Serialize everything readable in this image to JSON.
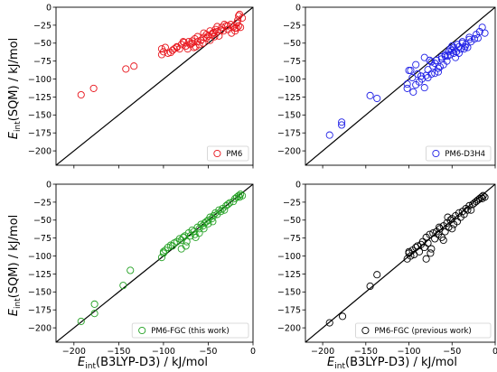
{
  "figure": {
    "xlabel": {
      "main": "E",
      "sub": "int",
      "rest": "(B3LYP-D3) / kJ/mol"
    },
    "ylabel": {
      "main": "E",
      "sub": "int",
      "rest": "(SQM) / kJ/mol"
    }
  },
  "chart_data": [
    {
      "type": "scatter",
      "panel": "top-left",
      "xlim": [
        -220,
        0
      ],
      "ylim": [
        -220,
        0
      ],
      "xticks": [
        -200,
        -150,
        -100,
        -50,
        0
      ],
      "yticks": [
        0,
        -25,
        -50,
        -75,
        -100,
        -125,
        -150,
        -175,
        -200
      ],
      "show_xtick_labels": false,
      "show_ytick_labels": true,
      "diagonal": true,
      "grid": false,
      "legend_position": "bottom-right",
      "series": [
        {
          "name": "PM6",
          "color": "#e8141b",
          "marker": "open-circle",
          "x": [
            -192,
            -178,
            -142,
            -133,
            -102,
            -98,
            -100,
            -92,
            -88,
            -85,
            -80,
            -77,
            -75,
            -73,
            -70,
            -68,
            -66,
            -64,
            -62,
            -60,
            -58,
            -56,
            -55,
            -52,
            -50,
            -48,
            -46,
            -45,
            -43,
            -40,
            -38,
            -35,
            -33,
            -30,
            -28,
            -25,
            -22,
            -20,
            -18,
            -17,
            -16,
            -15,
            -102,
            -95,
            -90,
            -85,
            -82,
            -78,
            -72,
            -68,
            -65,
            -62,
            -58,
            -55,
            -52,
            -48,
            -44,
            -42,
            -40,
            -36,
            -32,
            -28,
            -24,
            -20,
            -18,
            -16,
            -14,
            -12
          ],
          "y": [
            -122,
            -113,
            -86,
            -82,
            -58,
            -56,
            -62,
            -63,
            -58,
            -56,
            -52,
            -49,
            -54,
            -58,
            -52,
            -50,
            -56,
            -55,
            -48,
            -52,
            -46,
            -50,
            -42,
            -43,
            -40,
            -46,
            -38,
            -36,
            -41,
            -34,
            -40,
            -28,
            -33,
            -26,
            -31,
            -24,
            -27,
            -29,
            -22,
            -18,
            -12,
            -10,
            -66,
            -64,
            -60,
            -55,
            -58,
            -48,
            -48,
            -47,
            -44,
            -41,
            -46,
            -36,
            -38,
            -33,
            -35,
            -31,
            -27,
            -32,
            -24,
            -26,
            -36,
            -33,
            -29,
            -26,
            -28,
            -15
          ]
        }
      ]
    },
    {
      "type": "scatter",
      "panel": "top-right",
      "xlim": [
        -220,
        0
      ],
      "ylim": [
        -220,
        0
      ],
      "xticks": [
        -200,
        -150,
        -100,
        -50,
        0
      ],
      "yticks": [
        0,
        -25,
        -50,
        -75,
        -100,
        -125,
        -150,
        -175,
        -200
      ],
      "show_xtick_labels": false,
      "show_ytick_labels": true,
      "diagonal": true,
      "grid": false,
      "legend_position": "bottom-right",
      "series": [
        {
          "name": "PM6-D3H4",
          "color": "#1f1fe6",
          "marker": "open-circle",
          "x": [
            -192,
            -178,
            -178,
            -145,
            -137,
            -102,
            -102,
            -98,
            -95,
            -92,
            -90,
            -88,
            -85,
            -82,
            -80,
            -78,
            -76,
            -74,
            -72,
            -70,
            -68,
            -66,
            -64,
            -62,
            -60,
            -58,
            -56,
            -54,
            -52,
            -50,
            -50,
            -48,
            -46,
            -44,
            -42,
            -40,
            -38,
            -36,
            -34,
            -32,
            -30,
            -28,
            -24,
            -22,
            -20,
            -18,
            -15,
            -12,
            -100,
            -96,
            -92,
            -86,
            -82,
            -78,
            -74,
            -70,
            -66,
            -62,
            -58,
            -55,
            -52,
            -48,
            -45,
            -42,
            -38,
            -35,
            -30
          ],
          "y": [
            -178,
            -160,
            -164,
            -123,
            -127,
            -113,
            -107,
            -88,
            -118,
            -108,
            -93,
            -104,
            -100,
            -112,
            -95,
            -87,
            -74,
            -93,
            -82,
            -92,
            -74,
            -90,
            -83,
            -69,
            -80,
            -66,
            -75,
            -62,
            -66,
            -60,
            -54,
            -56,
            -70,
            -52,
            -64,
            -58,
            -48,
            -58,
            -52,
            -56,
            -45,
            -48,
            -44,
            -38,
            -43,
            -34,
            -28,
            -36,
            -88,
            -98,
            -80,
            -96,
            -70,
            -98,
            -76,
            -78,
            -85,
            -72,
            -68,
            -68,
            -58,
            -64,
            -62,
            -55,
            -50,
            -55,
            -42
          ]
        }
      ]
    },
    {
      "type": "scatter",
      "panel": "bottom-left",
      "xlim": [
        -220,
        0
      ],
      "ylim": [
        -220,
        0
      ],
      "xticks": [
        -200,
        -150,
        -100,
        -50,
        0
      ],
      "yticks": [
        0,
        -25,
        -50,
        -75,
        -100,
        -125,
        -150,
        -175,
        -200
      ],
      "show_xtick_labels": true,
      "show_ytick_labels": true,
      "diagonal": true,
      "grid": false,
      "legend_position": "bottom-right",
      "series": [
        {
          "name": "PM6-FGC (this work)",
          "color": "#22a022",
          "marker": "open-circle",
          "x": [
            -192,
            -177,
            -177,
            -145,
            -137,
            -102,
            -100,
            -100,
            -98,
            -95,
            -92,
            -90,
            -88,
            -85,
            -82,
            -80,
            -78,
            -76,
            -74,
            -72,
            -70,
            -68,
            -66,
            -64,
            -62,
            -60,
            -58,
            -56,
            -54,
            -52,
            -50,
            -48,
            -46,
            -44,
            -42,
            -40,
            -38,
            -36,
            -34,
            -32,
            -30,
            -28,
            -26,
            -22,
            -20,
            -18,
            -16,
            -15,
            -14,
            -12,
            -80,
            -75,
            -65,
            -60,
            -55,
            -50,
            -45
          ],
          "y": [
            -191,
            -180,
            -167,
            -141,
            -120,
            -102,
            -96,
            -94,
            -92,
            -88,
            -85,
            -86,
            -82,
            -80,
            -76,
            -78,
            -74,
            -72,
            -80,
            -68,
            -72,
            -64,
            -66,
            -74,
            -60,
            -62,
            -56,
            -58,
            -54,
            -52,
            -50,
            -46,
            -48,
            -44,
            -40,
            -42,
            -36,
            -38,
            -34,
            -36,
            -30,
            -28,
            -26,
            -24,
            -20,
            -18,
            -16,
            -18,
            -14,
            -16,
            -90,
            -86,
            -70,
            -68,
            -62,
            -55,
            -52
          ]
        }
      ]
    },
    {
      "type": "scatter",
      "panel": "bottom-right",
      "xlim": [
        -220,
        0
      ],
      "ylim": [
        -220,
        0
      ],
      "xticks": [
        -200,
        -150,
        -100,
        -50,
        0
      ],
      "yticks": [
        0,
        -25,
        -50,
        -75,
        -100,
        -125,
        -150,
        -175,
        -200
      ],
      "show_xtick_labels": true,
      "show_ytick_labels": true,
      "diagonal": true,
      "grid": false,
      "legend_position": "bottom-right",
      "series": [
        {
          "name": "PM6-FGC (previous work)",
          "color": "#000000",
          "marker": "open-circle",
          "x": [
            -192,
            -177,
            -145,
            -137,
            -102,
            -100,
            -100,
            -98,
            -96,
            -94,
            -92,
            -90,
            -88,
            -86,
            -84,
            -82,
            -80,
            -78,
            -76,
            -74,
            -72,
            -70,
            -68,
            -66,
            -64,
            -62,
            -60,
            -58,
            -56,
            -54,
            -52,
            -50,
            -48,
            -46,
            -44,
            -42,
            -40,
            -38,
            -36,
            -34,
            -32,
            -30,
            -28,
            -26,
            -24,
            -22,
            -20,
            -18,
            -16,
            -15,
            -14,
            -12,
            -80,
            -75,
            -65,
            -60,
            -55,
            -50
          ],
          "y": [
            -193,
            -184,
            -142,
            -126,
            -104,
            -96,
            -94,
            -100,
            -92,
            -98,
            -88,
            -86,
            -94,
            -84,
            -80,
            -88,
            -74,
            -82,
            -70,
            -90,
            -68,
            -76,
            -66,
            -70,
            -62,
            -74,
            -58,
            -66,
            -54,
            -60,
            -50,
            -48,
            -56,
            -44,
            -52,
            -40,
            -46,
            -38,
            -42,
            -34,
            -36,
            -30,
            -36,
            -28,
            -26,
            -24,
            -22,
            -20,
            -18,
            -20,
            -16,
            -18,
            -104,
            -96,
            -60,
            -78,
            -46,
            -62
          ]
        }
      ]
    }
  ]
}
